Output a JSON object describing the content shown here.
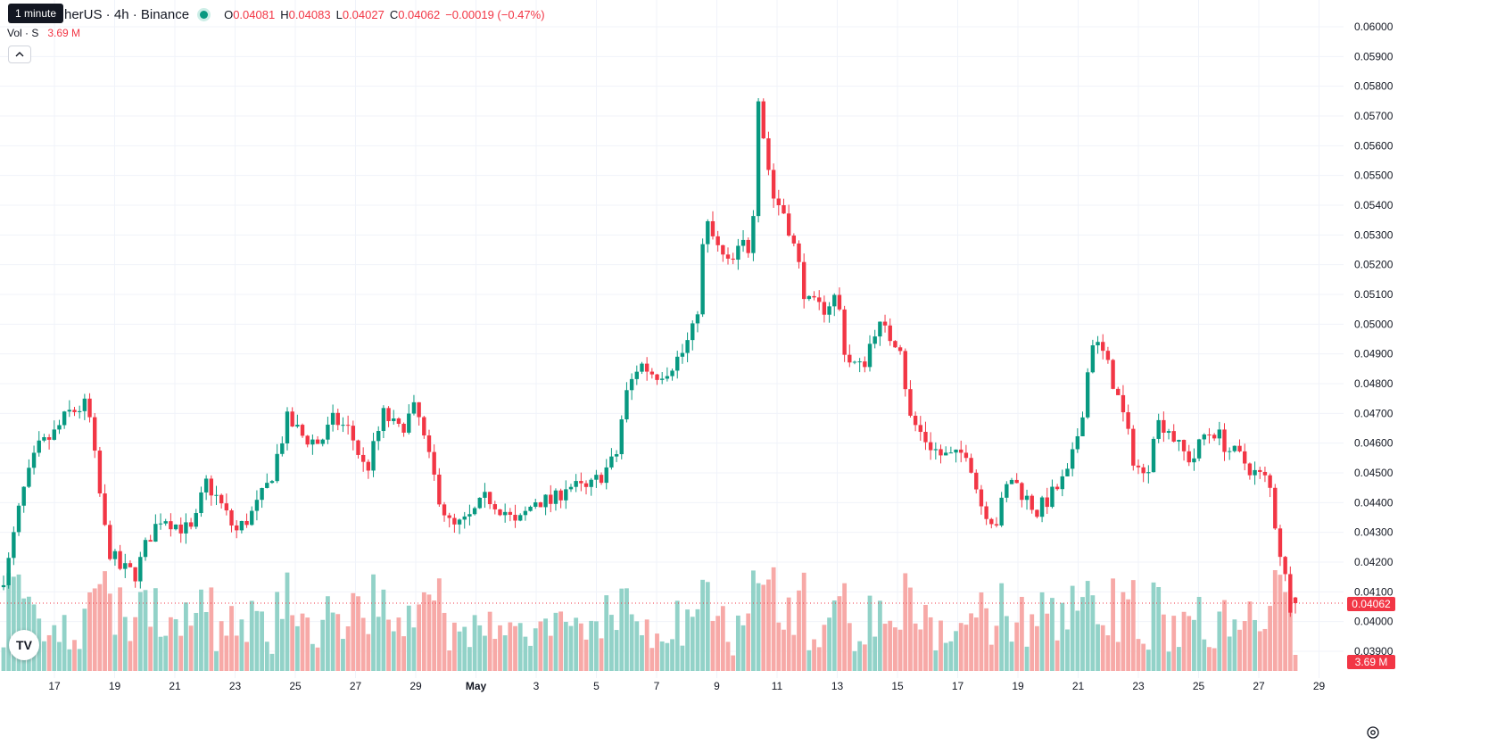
{
  "header": {
    "tooltip": "1 minute",
    "symbol_title": "herUS · 4h · Binance",
    "ohlc": {
      "o_label": "O",
      "o": "0.04081",
      "h_label": "H",
      "h": "0.04083",
      "l_label": "L",
      "l": "0.04027",
      "c_label": "C",
      "c": "0.04062",
      "change": "−0.00019 (−0.47%)"
    },
    "volume_label": "Vol · S",
    "volume_value": "3.69 M",
    "collapse_icon": "chevron-up-icon",
    "logo_text": "TV"
  },
  "price_axis": {
    "ticks": [
      "0.06000",
      "0.05900",
      "0.05800",
      "0.05700",
      "0.05600",
      "0.05500",
      "0.05400",
      "0.05300",
      "0.05200",
      "0.05100",
      "0.05000",
      "0.04900",
      "0.04800",
      "0.04700",
      "0.04600",
      "0.04500",
      "0.04400",
      "0.04300",
      "0.04200",
      "0.04100",
      "0.04000",
      "0.03900"
    ],
    "last_price_label": "0.04062",
    "volume_badge": "3.69 M"
  },
  "colors": {
    "up": "#089981",
    "down": "#f23645",
    "up_volume": "#92d2c8",
    "down_volume": "#f7a9a7",
    "grid": "#f0f3fa"
  },
  "chart_data": {
    "type": "candlestick",
    "interval": "4h",
    "ylim": [
      0.0386,
      0.0604
    ],
    "x_tick_labels": [
      "17",
      "19",
      "21",
      "23",
      "25",
      "27",
      "29",
      "May",
      "3",
      "5",
      "7",
      "9",
      "11",
      "13",
      "15",
      "17",
      "19",
      "21",
      "23",
      "25",
      "27",
      "29"
    ],
    "anchors": [
      [
        0,
        0.0409
      ],
      [
        14,
        0.0418
      ],
      [
        30,
        0.0442
      ],
      [
        48,
        0.0458
      ],
      [
        66,
        0.0463
      ],
      [
        82,
        0.047
      ],
      [
        104,
        0.0473
      ],
      [
        114,
        0.045
      ],
      [
        126,
        0.0425
      ],
      [
        140,
        0.0418
      ],
      [
        158,
        0.0416
      ],
      [
        172,
        0.0428
      ],
      [
        188,
        0.0436
      ],
      [
        200,
        0.0433
      ],
      [
        222,
        0.043
      ],
      [
        236,
        0.0447
      ],
      [
        250,
        0.0441
      ],
      [
        270,
        0.043
      ],
      [
        290,
        0.0437
      ],
      [
        308,
        0.0447
      ],
      [
        328,
        0.0468
      ],
      [
        346,
        0.0462
      ],
      [
        364,
        0.046
      ],
      [
        380,
        0.0468
      ],
      [
        398,
        0.0464
      ],
      [
        416,
        0.045
      ],
      [
        436,
        0.047
      ],
      [
        452,
        0.0464
      ],
      [
        472,
        0.0472
      ],
      [
        486,
        0.0455
      ],
      [
        500,
        0.044
      ],
      [
        512,
        0.0431
      ],
      [
        530,
        0.0434
      ],
      [
        552,
        0.0442
      ],
      [
        572,
        0.0437
      ],
      [
        584,
        0.0432
      ],
      [
        606,
        0.0441
      ],
      [
        626,
        0.044
      ],
      [
        640,
        0.0446
      ],
      [
        664,
        0.0444
      ],
      [
        696,
        0.0455
      ],
      [
        706,
        0.0475
      ],
      [
        722,
        0.0487
      ],
      [
        740,
        0.0483
      ],
      [
        754,
        0.0485
      ],
      [
        770,
        0.049
      ],
      [
        786,
        0.05
      ],
      [
        796,
        0.0535
      ],
      [
        812,
        0.0524
      ],
      [
        824,
        0.0519
      ],
      [
        838,
        0.0527
      ],
      [
        848,
        0.0525
      ],
      [
        856,
        0.0579
      ],
      [
        862,
        0.0562
      ],
      [
        872,
        0.0543
      ],
      [
        886,
        0.0537
      ],
      [
        900,
        0.0521
      ],
      [
        910,
        0.0507
      ],
      [
        928,
        0.0505
      ],
      [
        944,
        0.051
      ],
      [
        954,
        0.0488
      ],
      [
        972,
        0.0485
      ],
      [
        988,
        0.05
      ],
      [
        1002,
        0.0496
      ],
      [
        1016,
        0.0493
      ],
      [
        1024,
        0.0469
      ],
      [
        1046,
        0.046
      ],
      [
        1060,
        0.0456
      ],
      [
        1076,
        0.0455
      ],
      [
        1090,
        0.0458
      ],
      [
        1104,
        0.044
      ],
      [
        1122,
        0.0433
      ],
      [
        1138,
        0.0449
      ],
      [
        1152,
        0.0443
      ],
      [
        1168,
        0.0437
      ],
      [
        1186,
        0.0443
      ],
      [
        1204,
        0.045
      ],
      [
        1218,
        0.0469
      ],
      [
        1230,
        0.0495
      ],
      [
        1242,
        0.049
      ],
      [
        1252,
        0.0482
      ],
      [
        1264,
        0.047
      ],
      [
        1276,
        0.0455
      ],
      [
        1290,
        0.0447
      ],
      [
        1300,
        0.0467
      ],
      [
        1314,
        0.0466
      ],
      [
        1328,
        0.0458
      ],
      [
        1342,
        0.0454
      ],
      [
        1356,
        0.0463
      ],
      [
        1368,
        0.0464
      ],
      [
        1382,
        0.0458
      ],
      [
        1396,
        0.0455
      ],
      [
        1412,
        0.045
      ],
      [
        1428,
        0.0447
      ],
      [
        1436,
        0.0431
      ],
      [
        1444,
        0.0418
      ],
      [
        1452,
        0.0406
      ]
    ],
    "candle_count": 256,
    "last": {
      "open": 0.04081,
      "high": 0.04083,
      "low": 0.04027,
      "close": 0.04062,
      "volume": "3.69 M"
    }
  }
}
